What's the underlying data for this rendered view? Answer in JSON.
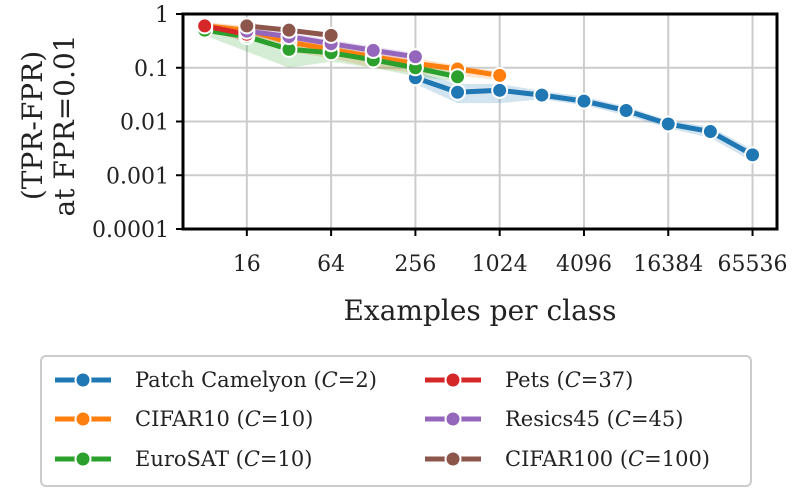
{
  "chart_data": {
    "type": "line",
    "xlabel": "Examples per class",
    "ylabel_lines": [
      "(TPR-FPR)",
      "at FPR=0.01"
    ],
    "x_scale": "log2",
    "y_scale": "log10",
    "xlim": [
      5.6,
      98000
    ],
    "ylim": [
      0.0001,
      1
    ],
    "x_ticks": [
      16,
      64,
      256,
      1024,
      4096,
      16384,
      65536
    ],
    "x_tick_labels": [
      "16",
      "64",
      "256",
      "1024",
      "4096",
      "16384",
      "65536"
    ],
    "y_ticks": [
      1,
      0.1,
      0.01,
      0.001,
      0.0001
    ],
    "y_tick_labels": [
      "1",
      "0.1",
      "0.01",
      "0.001",
      "0.0001"
    ],
    "grid": true,
    "legend_position": "below",
    "series": [
      {
        "name": "Patch Camelyon (C=2)",
        "legend_prefix": "Patch Camelyon (",
        "legend_var": "C",
        "legend_suffix": "=2)",
        "color": "#1f77b4",
        "x": [
          256,
          512,
          1024,
          2048,
          4096,
          8192,
          16384,
          32768,
          65536
        ],
        "y": [
          0.065,
          0.035,
          0.038,
          0.031,
          0.024,
          0.016,
          0.009,
          0.0065,
          0.0024
        ],
        "band_low": [
          0.05,
          0.022,
          0.022,
          0.026,
          0.02,
          0.013,
          0.0075,
          0.005,
          0.0018
        ],
        "band_high": [
          0.085,
          0.05,
          0.05,
          0.037,
          0.029,
          0.019,
          0.0105,
          0.008,
          0.003
        ]
      },
      {
        "name": "CIFAR10 (C=10)",
        "legend_prefix": "CIFAR10 (",
        "legend_var": "C",
        "legend_suffix": "=10)",
        "color": "#ff7f0e",
        "x": [
          8,
          16,
          32,
          64,
          128,
          256,
          512,
          1024
        ],
        "y": [
          0.6,
          0.5,
          0.3,
          0.22,
          0.16,
          0.12,
          0.095,
          0.072
        ],
        "band_low": [
          0.5,
          0.35,
          0.2,
          0.15,
          0.1,
          0.08,
          0.07,
          0.06
        ],
        "band_high": [
          0.7,
          0.6,
          0.4,
          0.28,
          0.2,
          0.15,
          0.11,
          0.085
        ]
      },
      {
        "name": "EuroSAT (C=10)",
        "legend_prefix": "EuroSAT (",
        "legend_var": "C",
        "legend_suffix": "=10)",
        "color": "#2ca02c",
        "x": [
          8,
          16,
          32,
          64,
          128,
          256,
          512
        ],
        "y": [
          0.5,
          0.38,
          0.22,
          0.19,
          0.14,
          0.1,
          0.068
        ],
        "band_low": [
          0.4,
          0.2,
          0.1,
          0.13,
          0.1,
          0.07,
          0.055
        ],
        "band_high": [
          0.6,
          0.5,
          0.3,
          0.25,
          0.18,
          0.13,
          0.08
        ]
      },
      {
        "name": "Pets (C=37)",
        "legend_prefix": "Pets (",
        "legend_var": "C",
        "legend_suffix": "=37)",
        "color": "#d62728",
        "x": [
          8,
          16
        ],
        "y": [
          0.6,
          0.42
        ],
        "band_low": [
          0.5,
          0.3
        ],
        "band_high": [
          0.7,
          0.55
        ]
      },
      {
        "name": "Resics45 (C=45)",
        "legend_prefix": "Resics45 (",
        "legend_var": "C",
        "legend_suffix": "=45)",
        "color": "#9467bd",
        "x": [
          16,
          32,
          64,
          128,
          256
        ],
        "y": [
          0.48,
          0.38,
          0.28,
          0.21,
          0.16
        ],
        "band_low": [
          0.4,
          0.3,
          0.22,
          0.17,
          0.13
        ],
        "band_high": [
          0.55,
          0.45,
          0.33,
          0.25,
          0.19
        ]
      },
      {
        "name": "CIFAR100 (C=100)",
        "legend_prefix": "CIFAR100 (",
        "legend_var": "C",
        "legend_suffix": "=100)",
        "color": "#8c564b",
        "x": [
          16,
          32,
          64
        ],
        "y": [
          0.6,
          0.5,
          0.4
        ],
        "band_low": [
          0.55,
          0.45,
          0.35
        ],
        "band_high": [
          0.65,
          0.55,
          0.45
        ]
      }
    ]
  }
}
